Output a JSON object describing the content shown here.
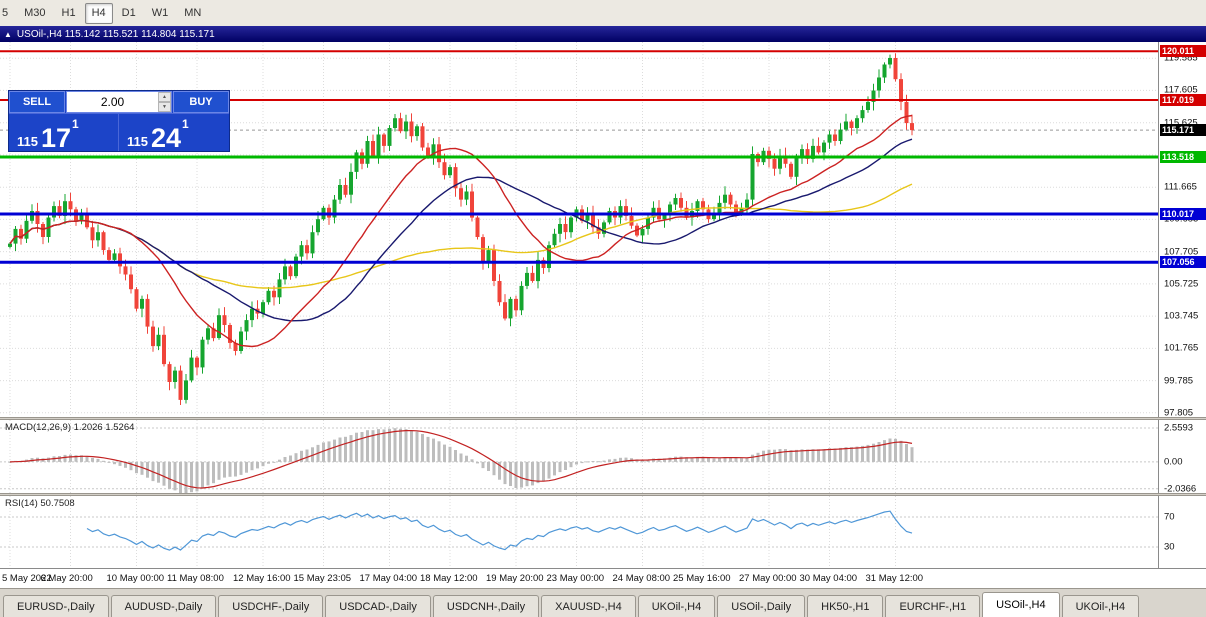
{
  "toolbar": {
    "timeframes": [
      "5",
      "M30",
      "H1",
      "H4",
      "D1",
      "W1",
      "MN"
    ],
    "active": "H4"
  },
  "window": {
    "collapse_icon": "▲",
    "symbol": "USOil-,H4",
    "ohlc": "115.142 115.521 114.804 115.171"
  },
  "trade_panel": {
    "sell_label": "SELL",
    "buy_label": "BUY",
    "lot_size": "2.00",
    "spin_up": "▲",
    "spin_down": "▼",
    "bid": {
      "prefix": "115",
      "big": "17",
      "sup": "1"
    },
    "ask": {
      "prefix": "115",
      "big": "24",
      "sup": "1"
    }
  },
  "price_axis": {
    "labels": [
      "119.585",
      "117.605",
      "115.625",
      "113.645",
      "111.665",
      "109.685",
      "107.705",
      "105.725",
      "103.745",
      "101.765",
      "99.785",
      "97.805"
    ]
  },
  "levels": [
    {
      "label": "120.011",
      "value": 120.011,
      "color": "#d40000",
      "thickness": 2
    },
    {
      "label": "117.019",
      "value": 117.019,
      "color": "#d40000",
      "thickness": 2
    },
    {
      "label": "113.518",
      "value": 113.518,
      "color": "#00b800",
      "thickness": 3
    },
    {
      "label": "110.017",
      "value": 110.017,
      "color": "#0000d4",
      "thickness": 3
    },
    {
      "label": "107.056",
      "value": 107.056,
      "color": "#0000d4",
      "thickness": 3
    }
  ],
  "current_price": {
    "label": "115.171",
    "value": 115.171,
    "color": "#000000"
  },
  "time_axis": {
    "labels": [
      "5 May 2022",
      "6 May 20:00",
      "10 May 00:00",
      "11 May 08:00",
      "12 May 16:00",
      "15 May 23:05",
      "17 May 04:00",
      "18 May 12:00",
      "19 May 20:00",
      "23 May 00:00",
      "24 May 08:00",
      "25 May 16:00",
      "27 May 00:00",
      "30 May 04:00",
      "31 May 12:00"
    ]
  },
  "macd": {
    "title": "MACD(12,26,9)",
    "values": "1.2026 1.5264",
    "axis_labels": [
      "2.5593",
      "0.00",
      "-2.0366"
    ],
    "axis_values": [
      2.5593,
      0,
      -2.0366
    ],
    "range": [
      -2.35,
      3.16
    ]
  },
  "rsi": {
    "title": "RSI(14)",
    "value": "50.7508",
    "axis_labels": [
      "70",
      "30"
    ],
    "levels": [
      70,
      30
    ],
    "range": [
      2,
      98
    ]
  },
  "tabs": {
    "items": [
      "EURUSD-,Daily",
      "AUDUSD-,Daily",
      "USDCHF-,Daily",
      "USDCAD-,Daily",
      "USDCNH-,Daily",
      "XAUUSD-,H4",
      "UKOil-,H4",
      "USOil-,Daily",
      "HK50-,H1",
      "EURCHF-,H1",
      "USOil-,H4",
      "UKOil-,H4"
    ],
    "active_index": 10
  },
  "chart_data": {
    "type": "candlestick",
    "symbol": "USOil-,H4",
    "timeframe": "H4",
    "price_range": [
      97.55,
      120.58
    ],
    "first_open": 108.0,
    "tick_indices": [
      0,
      11,
      23,
      34,
      46,
      57,
      69,
      80,
      92,
      103,
      115,
      126,
      138,
      149,
      161
    ],
    "closes": [
      108.2,
      109.1,
      108.5,
      109.6,
      110.2,
      109.4,
      108.6,
      109.8,
      110.5,
      109.9,
      110.8,
      110.3,
      109.6,
      110.1,
      109.2,
      108.4,
      108.9,
      107.8,
      107.2,
      107.6,
      106.8,
      106.3,
      105.4,
      104.2,
      104.8,
      103.1,
      101.9,
      102.6,
      100.8,
      99.7,
      100.4,
      98.6,
      99.8,
      101.2,
      100.6,
      102.3,
      103.0,
      102.4,
      103.8,
      103.2,
      102.1,
      101.6,
      102.8,
      103.5,
      104.2,
      103.9,
      104.6,
      105.3,
      104.9,
      106.0,
      106.8,
      106.2,
      107.4,
      108.1,
      107.6,
      108.9,
      109.7,
      110.4,
      109.8,
      110.9,
      111.8,
      111.2,
      112.6,
      113.8,
      113.1,
      114.5,
      113.6,
      114.9,
      114.2,
      115.3,
      115.9,
      115.1,
      115.7,
      114.8,
      115.4,
      114.1,
      113.5,
      114.3,
      113.2,
      112.4,
      112.9,
      111.6,
      110.9,
      111.4,
      109.8,
      108.6,
      107.1,
      107.8,
      105.9,
      104.6,
      103.6,
      104.8,
      104.1,
      105.6,
      106.4,
      105.9,
      107.2,
      106.7,
      108.1,
      108.8,
      109.4,
      108.9,
      109.8,
      110.3,
      109.6,
      110.1,
      109.2,
      108.8,
      109.5,
      110.2,
      109.8,
      110.5,
      109.9,
      109.3,
      108.7,
      109.1,
      109.8,
      110.4,
      109.7,
      110.0,
      110.6,
      111.0,
      110.4,
      109.8,
      110.2,
      110.8,
      110.3,
      109.7,
      110.1,
      110.7,
      111.2,
      110.6,
      110.0,
      110.4,
      110.9,
      113.7,
      113.2,
      113.9,
      113.4,
      112.8,
      113.6,
      113.1,
      112.3,
      113.5,
      114.0,
      113.4,
      114.2,
      113.8,
      114.4,
      114.9,
      114.5,
      115.2,
      115.7,
      115.3,
      115.9,
      116.4,
      116.9,
      117.6,
      118.4,
      119.2,
      119.6,
      118.3,
      116.9,
      115.6,
      115.171
    ],
    "ma": {
      "red": {
        "period": 20,
        "color": "#cc2222"
      },
      "blue": {
        "period": 34,
        "color": "#19196e"
      },
      "yellow": {
        "period": 72,
        "color": "#e8c619"
      }
    },
    "colors": {
      "bull": "#16a52f",
      "bear": "#f0443a",
      "grid": "#dcdcdc",
      "macd_hist": "#bdbdbd",
      "macd_signal": "#c22222",
      "rsi_line": "#4f97d7",
      "panel_blue": "#1c44c8"
    }
  }
}
